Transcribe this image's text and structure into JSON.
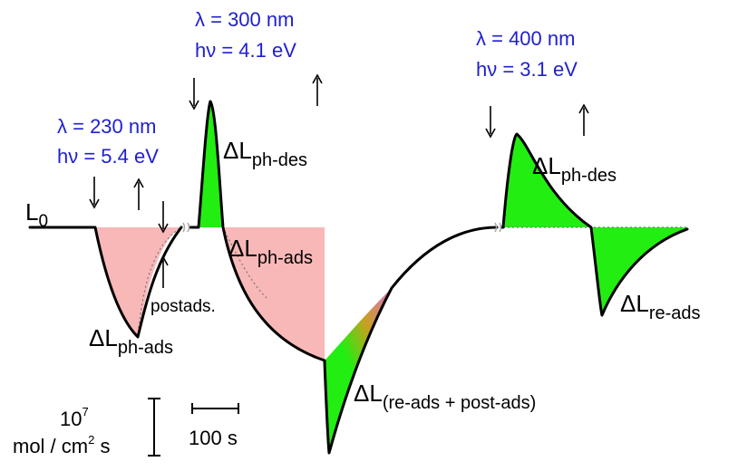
{
  "labels": {
    "l0_main": "L",
    "l0_sub": "0",
    "exp1_lambda": "λ = 230 nm",
    "exp1_energy": "hν = 5.4 eV",
    "exp2_lambda": "λ = 300 nm",
    "exp2_energy": "hν = 4.1 eV",
    "exp3_lambda": "λ = 400 nm",
    "exp3_energy": "hν = 3.1 eV",
    "delta": "ΔL",
    "ph_des_1": "ph-des",
    "ph_ads_1": "ph-ads",
    "ph_ads_2": "ph-ads",
    "ph_des_2": "ph-des",
    "re_ads": "re-ads",
    "re_post": "(re-ads + post-ads)",
    "postads": "postads.",
    "scale_y_value": "10",
    "scale_y_exp": "7",
    "scale_y_unit_a": "mol / cm",
    "scale_y_unit_exp": "2",
    "scale_y_unit_b": " s",
    "scale_x": "100 s"
  },
  "colors": {
    "blue_text": "#1f1fd0",
    "pink_fill": "#f8b8b8",
    "green_fill": "#22ee11",
    "curve": "#000000"
  }
}
